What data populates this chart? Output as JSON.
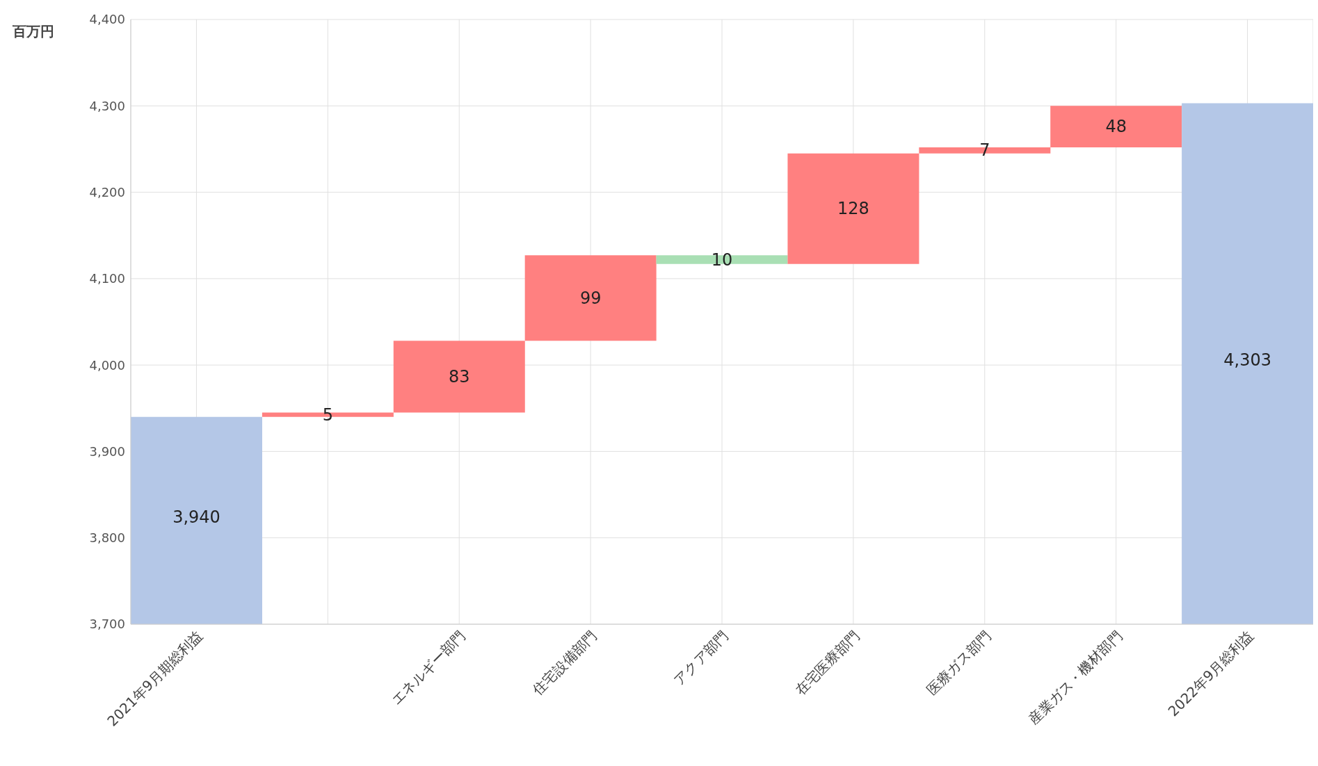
{
  "chart_data": {
    "type": "bar",
    "ylabel": "百万円",
    "categories": [
      "2021年9月期総利益",
      null,
      "エネルギー部門",
      "住宅設備部門",
      "アクア部門",
      "在宅医療部門",
      "医療ガス部門",
      "産業ガス・機材部門",
      "2022年9月総利益"
    ],
    "values": [
      3940,
      5,
      83,
      99,
      -10,
      128,
      7,
      48,
      4303
    ],
    "base": [
      0,
      3940,
      3945,
      4028,
      4127,
      4117,
      4245,
      4252,
      0
    ],
    "value_labels": [
      "3,940",
      "5",
      "83",
      "99",
      "10",
      "128",
      "7",
      "48",
      "4,303"
    ],
    "colors": [
      "#b4c7e7",
      "#ff8080",
      "#ff8080",
      "#ff8080",
      "#a9dfb4",
      "#ff8080",
      "#ff8080",
      "#ff8080",
      "#b4c7e7"
    ],
    "ylim": [
      3700,
      4400
    ],
    "yticks": [
      {
        "value": 3700,
        "label": "3,700"
      },
      {
        "value": 3800,
        "label": "3,800"
      },
      {
        "value": 3900,
        "label": "3,900"
      },
      {
        "value": 4000,
        "label": "4,000"
      },
      {
        "value": 4100,
        "label": "4,100"
      },
      {
        "value": 4200,
        "label": "4,200"
      },
      {
        "value": 4300,
        "label": "4,300"
      },
      {
        "value": 4400,
        "label": "4,400"
      }
    ],
    "grid": true
  }
}
